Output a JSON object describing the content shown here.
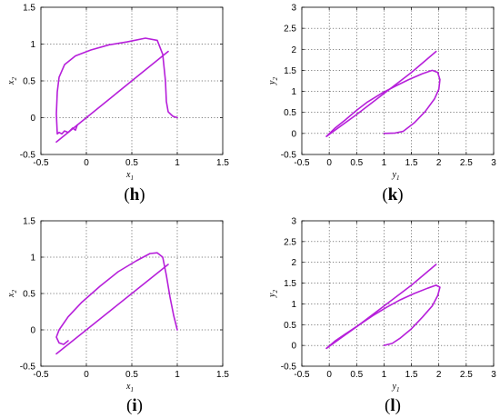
{
  "chart_data": [
    {
      "id": "h",
      "panel_label": "h",
      "type": "line",
      "xlabel": "x",
      "xlabel_sub": "1",
      "ylabel": "x",
      "ylabel_sub": "2",
      "xlim": [
        -0.5,
        1.5
      ],
      "ylim": [
        -0.5,
        1.5
      ],
      "xticks": [
        "-0.5",
        "0",
        "0.5",
        "1",
        "1.5"
      ],
      "yticks": [
        "-0.5",
        "0",
        "0.5",
        "1",
        "1.5"
      ],
      "grid": true,
      "color": "#B61FDA",
      "series": [
        {
          "x": [
            -0.33,
            0.0,
            0.3,
            0.6,
            0.9
          ],
          "y": [
            -0.33,
            0.0,
            0.3,
            0.6,
            0.9
          ]
        },
        {
          "x": [
            1.0,
            0.95,
            0.9,
            0.88,
            0.87,
            0.84,
            0.78,
            0.65,
            0.45,
            0.25,
            0.05,
            -0.12,
            -0.24,
            -0.3,
            -0.32,
            -0.33,
            -0.32,
            -0.3,
            -0.27,
            -0.24,
            -0.2,
            -0.15,
            -0.12,
            -0.1
          ],
          "y": [
            0.0,
            0.02,
            0.08,
            0.22,
            0.5,
            0.86,
            1.05,
            1.08,
            1.03,
            0.99,
            0.92,
            0.84,
            0.72,
            0.55,
            0.35,
            0.05,
            -0.22,
            -0.2,
            -0.22,
            -0.18,
            -0.2,
            -0.14,
            -0.17,
            -0.1
          ]
        }
      ]
    },
    {
      "id": "k",
      "panel_label": "k",
      "type": "line",
      "xlabel": "y",
      "xlabel_sub": "1",
      "ylabel": "y",
      "ylabel_sub": "2",
      "xlim": [
        -0.5,
        3
      ],
      "ylim": [
        -0.5,
        3
      ],
      "xticks": [
        "-0.5",
        "0",
        "0.5",
        "1",
        "1.5",
        "2",
        "2.5",
        "3"
      ],
      "yticks": [
        "-0.5",
        "0",
        "0.5",
        "1",
        "1.5",
        "2",
        "2.5",
        "3"
      ],
      "grid": true,
      "color": "#B61FDA",
      "series": [
        {
          "x": [
            -0.05,
            0.5,
            1.0,
            1.5,
            1.95
          ],
          "y": [
            -0.07,
            0.45,
            0.95,
            1.45,
            1.95
          ]
        },
        {
          "x": [
            1.0,
            1.2,
            1.35,
            1.55,
            1.75,
            1.92,
            2.0,
            2.02,
            1.98,
            1.88,
            1.7,
            1.45,
            1.2,
            0.95,
            0.7,
            0.5,
            0.3,
            0.1,
            -0.05
          ],
          "y": [
            0.0,
            0.01,
            0.05,
            0.25,
            0.52,
            0.82,
            1.05,
            1.28,
            1.45,
            1.5,
            1.42,
            1.28,
            1.12,
            0.95,
            0.75,
            0.55,
            0.33,
            0.12,
            -0.07
          ]
        }
      ]
    },
    {
      "id": "i",
      "panel_label": "i",
      "type": "line",
      "xlabel": "x",
      "xlabel_sub": "1",
      "ylabel": "x",
      "ylabel_sub": "2",
      "xlim": [
        -0.5,
        1.5
      ],
      "ylim": [
        -0.5,
        1.5
      ],
      "xticks": [
        "-0.5",
        "0",
        "0.5",
        "1",
        "1.5"
      ],
      "yticks": [
        "-0.5",
        "0",
        "0.5",
        "1",
        "1.5"
      ],
      "grid": true,
      "color": "#B61FDA",
      "series": [
        {
          "x": [
            -0.33,
            0.0,
            0.3,
            0.6,
            0.9
          ],
          "y": [
            -0.33,
            0.0,
            0.3,
            0.6,
            0.9
          ]
        },
        {
          "x": [
            1.0,
            0.96,
            0.92,
            0.88,
            0.84,
            0.78,
            0.7,
            0.55,
            0.35,
            0.15,
            -0.05,
            -0.2,
            -0.3,
            -0.33,
            -0.3,
            -0.25,
            -0.2
          ],
          "y": [
            0.0,
            0.2,
            0.45,
            0.75,
            1.0,
            1.06,
            1.05,
            0.95,
            0.8,
            0.6,
            0.38,
            0.18,
            0.0,
            -0.1,
            -0.18,
            -0.2,
            -0.15
          ]
        }
      ]
    },
    {
      "id": "l",
      "panel_label": "l",
      "type": "line",
      "xlabel": "y",
      "xlabel_sub": "1",
      "ylabel": "y",
      "ylabel_sub": "2",
      "xlim": [
        -0.5,
        3
      ],
      "ylim": [
        -0.5,
        3
      ],
      "xticks": [
        "-0.5",
        "0",
        "0.5",
        "1",
        "1.5",
        "2",
        "2.5",
        "3"
      ],
      "yticks": [
        "-0.5",
        "0",
        "0.5",
        "1",
        "1.5",
        "2",
        "2.5",
        "3"
      ],
      "grid": true,
      "color": "#B61FDA",
      "series": [
        {
          "x": [
            -0.05,
            0.5,
            1.0,
            1.5,
            1.95
          ],
          "y": [
            -0.07,
            0.45,
            0.95,
            1.45,
            1.95
          ]
        },
        {
          "x": [
            1.0,
            1.15,
            1.3,
            1.5,
            1.7,
            1.88,
            1.98,
            2.02,
            1.95,
            1.8,
            1.55,
            1.3,
            1.05,
            0.8,
            0.55,
            0.3,
            0.1,
            -0.05
          ],
          "y": [
            0.0,
            0.05,
            0.18,
            0.4,
            0.68,
            0.95,
            1.2,
            1.4,
            1.45,
            1.38,
            1.25,
            1.1,
            0.92,
            0.72,
            0.5,
            0.28,
            0.1,
            -0.07
          ]
        }
      ]
    }
  ]
}
